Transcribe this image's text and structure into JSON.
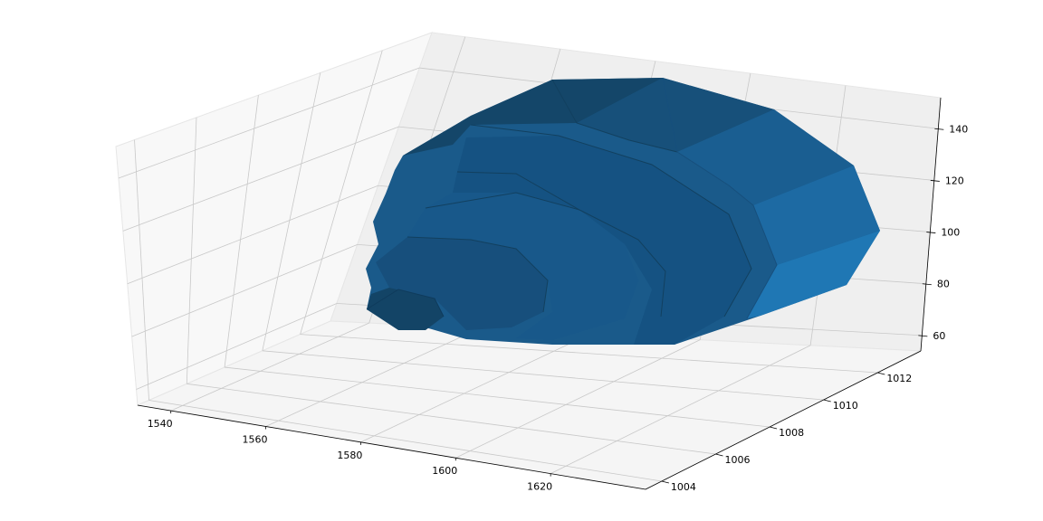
{
  "chart_data": {
    "type": "surface3d",
    "title": "",
    "xlabel": "",
    "ylabel": "",
    "zlabel": "",
    "grid": true,
    "surface_color": "#1f77b4",
    "pane_color": "#f2f2f2",
    "grid_color": "#c8c8c8",
    "x_ticks": [
      "1540",
      "1560",
      "1580",
      "1600",
      "1620"
    ],
    "y_ticks": [
      "1004",
      "1006",
      "1008",
      "1010",
      "1012"
    ],
    "z_ticks": [
      "60",
      "80",
      "100",
      "120",
      "140"
    ],
    "xlim": [
      1533,
      1640
    ],
    "ylim": [
      1003.4,
      1013.6
    ],
    "zlim": [
      54,
      152
    ]
  }
}
